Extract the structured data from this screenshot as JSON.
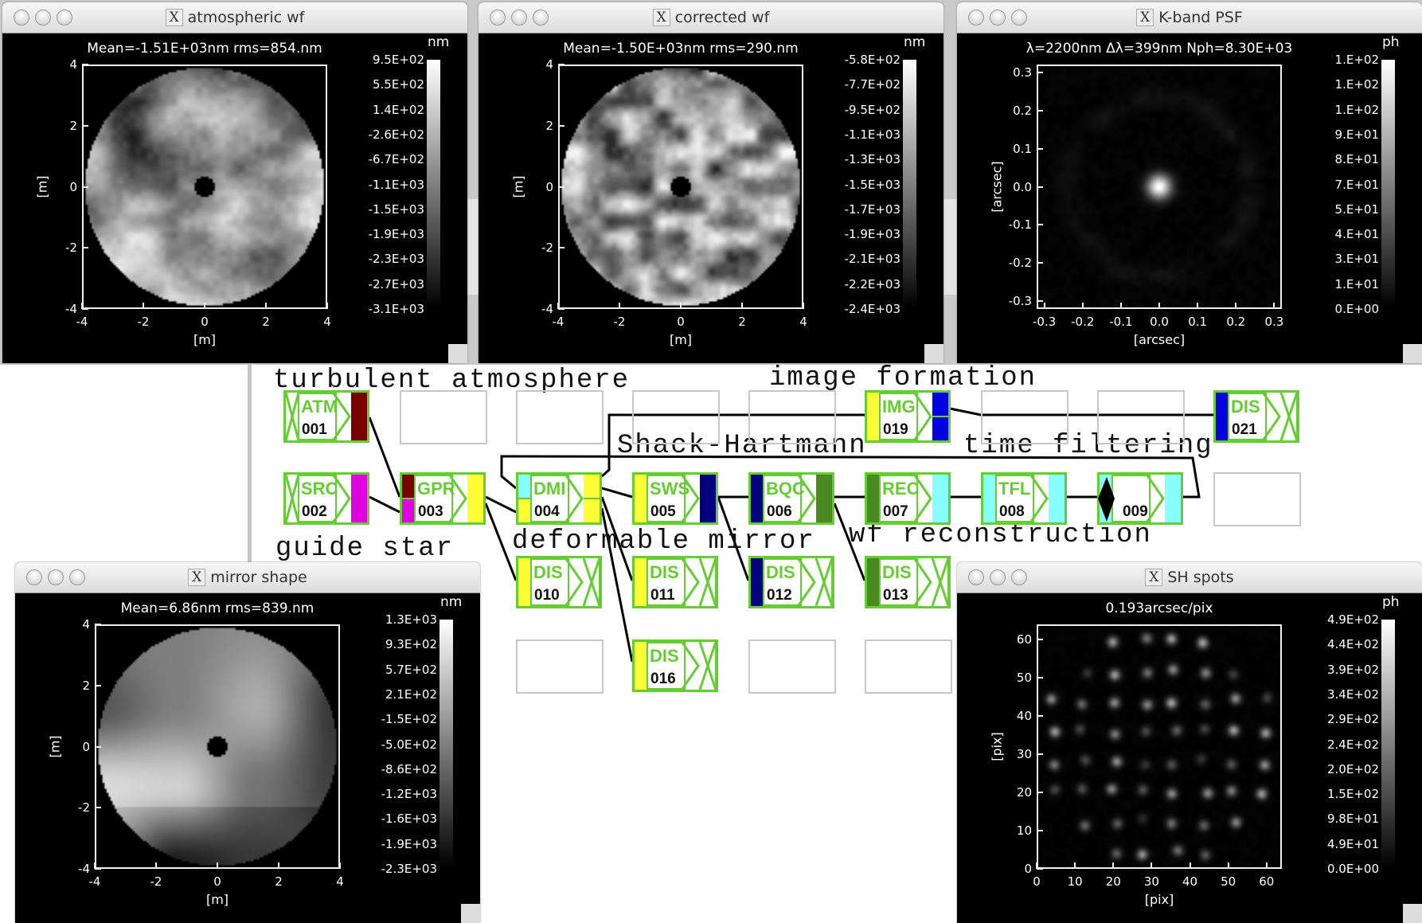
{
  "colors": {
    "module_border": "#66cc33",
    "dark_red": "#7a0000",
    "magenta": "#e000e0",
    "yellow": "#ffff33",
    "cyan": "#88ffff",
    "navy": "#000080",
    "olive": "#4a8a20",
    "blue": "#0000e0"
  },
  "windows": [
    {
      "id": "win-atm",
      "kind": "atm",
      "title": "atmospheric wf",
      "subtitle": "Mean=-1.51E+03nm rms=854.nm",
      "unit": "nm",
      "colorbar": [
        "9.5E+02",
        "5.5E+02",
        "1.4E+02",
        "-2.6E+02",
        "-6.7E+02",
        "-1.1E+03",
        "-1.5E+03",
        "-1.9E+03",
        "-2.3E+03",
        "-2.7E+03",
        "-3.1E+03"
      ],
      "xrange": [
        -4,
        4
      ],
      "yrange": [
        -4,
        4
      ],
      "xticks": [
        "-4",
        "-2",
        "0",
        "2",
        "4"
      ],
      "yticks": [
        "-4",
        "-2",
        "0",
        "2",
        "4"
      ],
      "xlabel": "[m]",
      "ylabel": "[m]"
    },
    {
      "id": "win-cor",
      "kind": "cor",
      "title": "corrected wf",
      "subtitle": "Mean=-1.50E+03nm rms=290.nm",
      "unit": "nm",
      "colorbar": [
        "-5.8E+02",
        "-7.7E+02",
        "-9.5E+02",
        "-1.1E+03",
        "-1.3E+03",
        "-1.5E+03",
        "-1.7E+03",
        "-1.9E+03",
        "-2.1E+03",
        "-2.2E+03",
        "-2.4E+03"
      ],
      "xrange": [
        -4,
        4
      ],
      "yrange": [
        -4,
        4
      ],
      "xticks": [
        "-4",
        "-2",
        "0",
        "2",
        "4"
      ],
      "yticks": [
        "-4",
        "-2",
        "0",
        "2",
        "4"
      ],
      "xlabel": "[m]",
      "ylabel": "[m]"
    },
    {
      "id": "win-psf",
      "kind": "psf",
      "title": "K-band PSF",
      "subtitle": "λ=2200nm Δλ=399nm Nph=8.30E+03",
      "unit": "ph",
      "colorbar": [
        "1.E+02",
        "1.E+02",
        "1.E+02",
        "9.E+01",
        "8.E+01",
        "7.E+01",
        "5.E+01",
        "4.E+01",
        "3.E+01",
        "1.E+01",
        "0.E+00"
      ],
      "xrange": [
        -0.32,
        0.32
      ],
      "yrange": [
        -0.32,
        0.32
      ],
      "xticks": [
        "-0.3",
        "-0.2",
        "-0.1",
        "0.0",
        "0.1",
        "0.2",
        "0.3"
      ],
      "yticks": [
        "-0.3",
        "-0.2",
        "-0.1",
        "0.0",
        "0.1",
        "0.2",
        "0.3"
      ],
      "xlabel": "[arcsec]",
      "ylabel": "[arcsec]"
    },
    {
      "id": "win-mir",
      "kind": "mir",
      "title": "mirror shape",
      "subtitle": "Mean=6.86nm  rms=839.nm",
      "unit": "nm",
      "colorbar": [
        "1.3E+03",
        "9.3E+02",
        "5.7E+02",
        "2.1E+02",
        "-1.5E+02",
        "-5.0E+02",
        "-8.6E+02",
        "-1.2E+03",
        "-1.6E+03",
        "-1.9E+03",
        "-2.3E+03"
      ],
      "xrange": [
        -4,
        4
      ],
      "yrange": [
        -4,
        4
      ],
      "xticks": [
        "-4",
        "-2",
        "0",
        "2",
        "4"
      ],
      "yticks": [
        "-4",
        "-2",
        "0",
        "2",
        "4"
      ],
      "xlabel": "[m]",
      "ylabel": "[m]"
    },
    {
      "id": "win-sh",
      "kind": "sh",
      "title": "SH spots",
      "subtitle": "0.193arcsec/pix",
      "unit": "ph",
      "colorbar": [
        "4.9E+02",
        "4.4E+02",
        "3.9E+02",
        "3.4E+02",
        "2.9E+02",
        "2.4E+02",
        "2.0E+02",
        "1.5E+02",
        "9.8E+01",
        "4.9E+01",
        "0.0E+00"
      ],
      "xrange": [
        0,
        64
      ],
      "yrange": [
        0,
        64
      ],
      "xticks": [
        "0",
        "10",
        "20",
        "30",
        "40",
        "50",
        "60"
      ],
      "yticks": [
        "0",
        "10",
        "20",
        "30",
        "40",
        "50",
        "60"
      ],
      "xlabel": "[pix]",
      "ylabel": "[pix]"
    }
  ],
  "diagram": {
    "labels": [
      "turbulent atmosphere",
      "image formation",
      "Shack-Hartmann",
      "time filtering",
      "guide star",
      "deformable mirror",
      "wf reconstruction"
    ],
    "modules": [
      {
        "label": "ATM",
        "num": "001",
        "left": "x",
        "right": [
          "#7a0000"
        ]
      },
      {
        "label": "SRC",
        "num": "002",
        "left": "x",
        "right": [
          "#e000e0"
        ]
      },
      {
        "label": "GPR",
        "num": "003",
        "left": [
          "#7a0000",
          "#e000e0"
        ],
        "right": [
          "#ffff33"
        ]
      },
      {
        "label": "DMI",
        "num": "004",
        "left": [
          "#88ffff",
          "#ffff33"
        ],
        "right": [
          "#ffff33",
          "#ffff33"
        ]
      },
      {
        "label": "SWS",
        "num": "005",
        "left": [
          "#ffff33"
        ],
        "right": [
          "#000080"
        ]
      },
      {
        "label": "BQC",
        "num": "006",
        "left": [
          "#000080"
        ],
        "right": [
          "#4a8a20"
        ]
      },
      {
        "label": "REC",
        "num": "007",
        "left": [
          "#4a8a20"
        ],
        "right": [
          "#88ffff"
        ]
      },
      {
        "label": "TFL",
        "num": "008",
        "left": [
          "#88ffff"
        ],
        "right": [
          "#88ffff"
        ]
      },
      {
        "label": "",
        "num": "009",
        "left": [
          "#88ffff"
        ],
        "right": [
          "#88ffff"
        ],
        "diamond": true
      },
      {
        "label": "DIS",
        "num": "010",
        "left": [
          "#ffff33"
        ],
        "right": "x"
      },
      {
        "label": "DIS",
        "num": "011",
        "left": [
          "#ffff33"
        ],
        "right": "x"
      },
      {
        "label": "DIS",
        "num": "012",
        "left": [
          "#000080"
        ],
        "right": "x"
      },
      {
        "label": "DIS",
        "num": "013",
        "left": [
          "#4a8a20"
        ],
        "right": "x"
      },
      {
        "label": "DIS",
        "num": "016",
        "left": [
          "#ffff33"
        ],
        "right": "x"
      },
      {
        "label": "IMG",
        "num": "019",
        "left": [
          "#ffff33"
        ],
        "right": [
          "#0000e0",
          "#0000e0"
        ]
      },
      {
        "label": "DIS",
        "num": "021",
        "left": [
          "#0000e0"
        ],
        "right": "x"
      }
    ]
  }
}
